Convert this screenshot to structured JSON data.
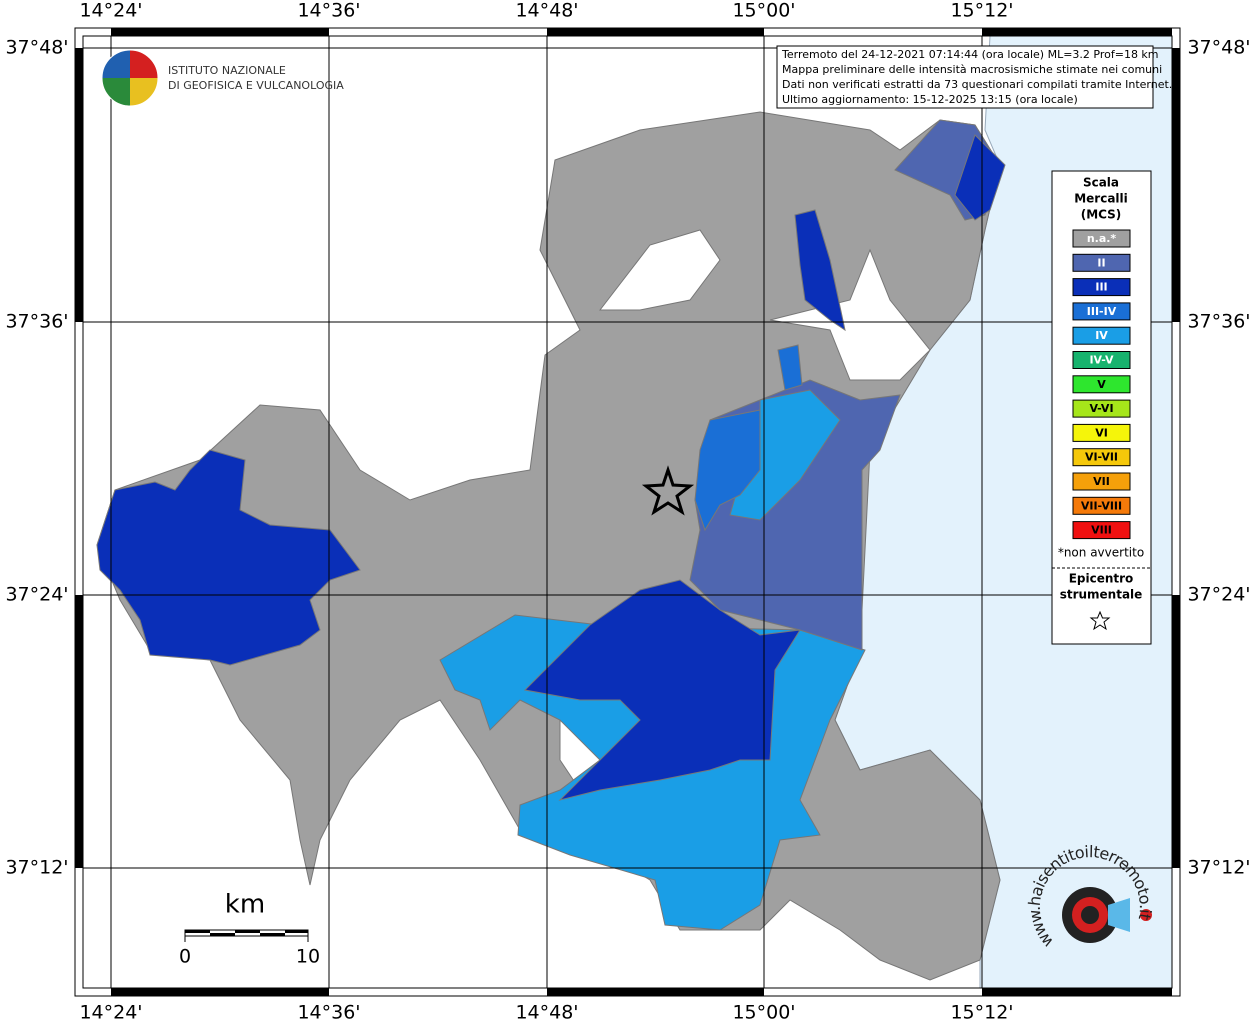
{
  "header": {
    "lines": [
      "Terremoto del 24-12-2021 07:14:44 (ora locale) ML=3.2 Prof=18 km",
      "Mappa preliminare delle intensità macrosismiche stimate nei comuni",
      "Dati non verificati estratti da 73 questionari compilati tramite Internet.",
      "Ultimo aggiornamento: 15-12-2025 13:15 (ora locale)"
    ]
  },
  "axes": {
    "lon": [
      "14°24'",
      "14°36'",
      "14°48'",
      "15°00'",
      "15°12'"
    ],
    "lat": [
      "37°48'",
      "37°36'",
      "37°24'",
      "37°12'"
    ]
  },
  "logo": {
    "line1": "ISTITUTO NAZIONALE",
    "line2": "DI GEOFISICA E VULCANOLOGIA",
    "site": "www.haisentitoilterremoto.it"
  },
  "legend": {
    "title": [
      "Scala",
      "Mercalli",
      "(MCS)"
    ],
    "items": [
      {
        "label": "n.a.*",
        "color": "#a0a0a0"
      },
      {
        "label": "II",
        "color": "#4f66b0"
      },
      {
        "label": "III",
        "color": "#0a2fb8"
      },
      {
        "label": "III-IV",
        "color": "#1a6fd6"
      },
      {
        "label": "IV",
        "color": "#1a9ee6"
      },
      {
        "label": "IV-V",
        "color": "#17b36e"
      },
      {
        "label": "V",
        "color": "#2ee62e"
      },
      {
        "label": "V-VI",
        "color": "#a6e61a"
      },
      {
        "label": "VI",
        "color": "#f5f50a"
      },
      {
        "label": "VI-VII",
        "color": "#f5c80a"
      },
      {
        "label": "VII",
        "color": "#f5a00a"
      },
      {
        "label": "VII-VIII",
        "color": "#f57a0a"
      },
      {
        "label": "VIII",
        "color": "#f01010"
      }
    ],
    "note": "*non avvertito",
    "epicenter": [
      "Epicentro",
      "strumentale"
    ]
  },
  "scalebar": {
    "unit": "km",
    "start": "0",
    "end": "10"
  }
}
